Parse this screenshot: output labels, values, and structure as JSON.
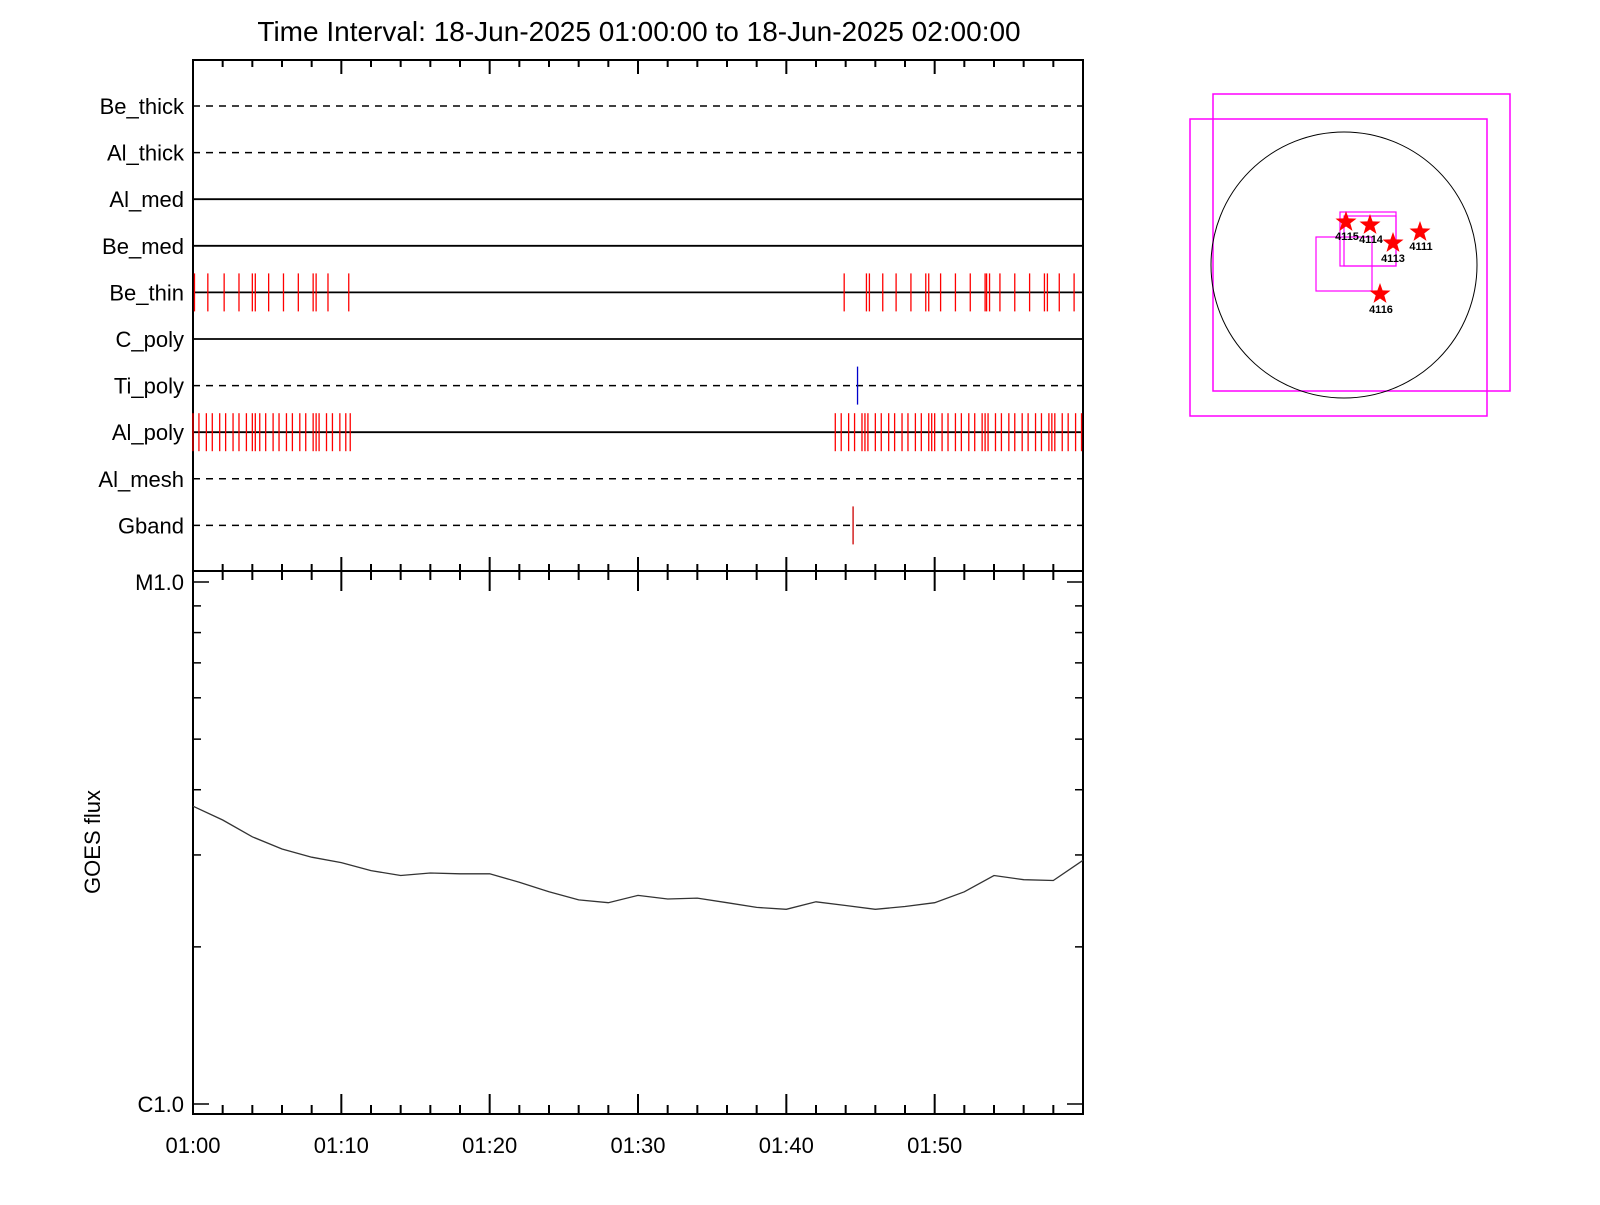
{
  "chart_data": {
    "type": "line",
    "title": "Time Interval: 18-Jun-2025 01:00:00 to 18-Jun-2025 02:00:00",
    "x_tick_labels": [
      "01:00",
      "01:10",
      "01:20",
      "01:30",
      "01:40",
      "01:50"
    ],
    "x_range_minutes": [
      0,
      60
    ],
    "filter_panel": {
      "channels": [
        {
          "name": "Be_thick",
          "style": "dashed",
          "events": []
        },
        {
          "name": "Al_thick",
          "style": "dashed",
          "events": []
        },
        {
          "name": "Al_med",
          "style": "solid",
          "events": []
        },
        {
          "name": "Be_med",
          "style": "solid",
          "events": []
        },
        {
          "name": "Be_thin",
          "style": "solid",
          "event_color": "#ff0000",
          "events": [
            0.1,
            1.0,
            2.1,
            3.1,
            4.0,
            4.2,
            5.1,
            6.1,
            7.1,
            8.1,
            8.3,
            9.1,
            10.5,
            43.9,
            45.4,
            45.6,
            46.5,
            47.4,
            48.4,
            49.4,
            49.6,
            50.4,
            51.4,
            52.4,
            53.4,
            53.5,
            53.7,
            54.4,
            55.4,
            56.4,
            57.4,
            57.6,
            58.4,
            59.4
          ]
        },
        {
          "name": "C_poly",
          "style": "solid",
          "events": []
        },
        {
          "name": "Ti_poly",
          "style": "dashed",
          "event_color": "#0000cc",
          "events": [
            44.8
          ]
        },
        {
          "name": "Al_poly",
          "style": "solid",
          "event_color": "#ff0000",
          "events": [
            0.0,
            0.4,
            0.9,
            1.3,
            1.8,
            2.2,
            2.7,
            3.1,
            3.6,
            4.0,
            4.2,
            4.5,
            4.9,
            5.4,
            5.8,
            6.3,
            6.7,
            7.2,
            7.6,
            8.1,
            8.3,
            8.5,
            9.0,
            9.4,
            9.9,
            10.3,
            10.6,
            43.3,
            43.7,
            44.2,
            44.6,
            45.1,
            45.3,
            45.5,
            46.0,
            46.4,
            46.9,
            47.3,
            47.8,
            48.2,
            48.7,
            49.1,
            49.6,
            49.8,
            50.0,
            50.5,
            50.9,
            51.4,
            51.8,
            52.3,
            52.7,
            53.2,
            53.4,
            53.6,
            54.1,
            54.5,
            55.0,
            55.4,
            55.9,
            56.3,
            56.8,
            57.2,
            57.7,
            57.9,
            58.1,
            58.6,
            59.0,
            59.5,
            59.9
          ]
        },
        {
          "name": "Al_mesh",
          "style": "dashed",
          "events": []
        },
        {
          "name": "Gband",
          "style": "dashed",
          "event_color": "#cc0000",
          "events": [
            44.5
          ]
        }
      ]
    },
    "goes_panel": {
      "ylabel": "GOES flux",
      "y_tick_labels": [
        "M1.0",
        "C1.0"
      ],
      "y_range_log_wm2": [
        1e-06,
        1e-05
      ],
      "series": [
        {
          "x": [
            0,
            2,
            4,
            6,
            8,
            10,
            12,
            14,
            16,
            18,
            20,
            22,
            24,
            26,
            28,
            30,
            32,
            34,
            36,
            38,
            40,
            42,
            44,
            46,
            48,
            50,
            52,
            54,
            56,
            58,
            60
          ],
          "y": [
            3.72e-06,
            3.5e-06,
            3.25e-06,
            3.08e-06,
            2.97e-06,
            2.9e-06,
            2.8e-06,
            2.74e-06,
            2.77e-06,
            2.76e-06,
            2.76e-06,
            2.66e-06,
            2.55e-06,
            2.46e-06,
            2.43e-06,
            2.51e-06,
            2.47e-06,
            2.48e-06,
            2.43e-06,
            2.38e-06,
            2.36e-06,
            2.44e-06,
            2.4e-06,
            2.36e-06,
            2.39e-06,
            2.43e-06,
            2.55e-06,
            2.74e-06,
            2.69e-06,
            2.68e-06,
            2.93e-06
          ]
        }
      ]
    },
    "sun_map": {
      "box_color": "#ff00ff",
      "star_color": "#ff0000",
      "active_regions": [
        "4115",
        "4114",
        "4113",
        "4111",
        "4116"
      ]
    }
  }
}
